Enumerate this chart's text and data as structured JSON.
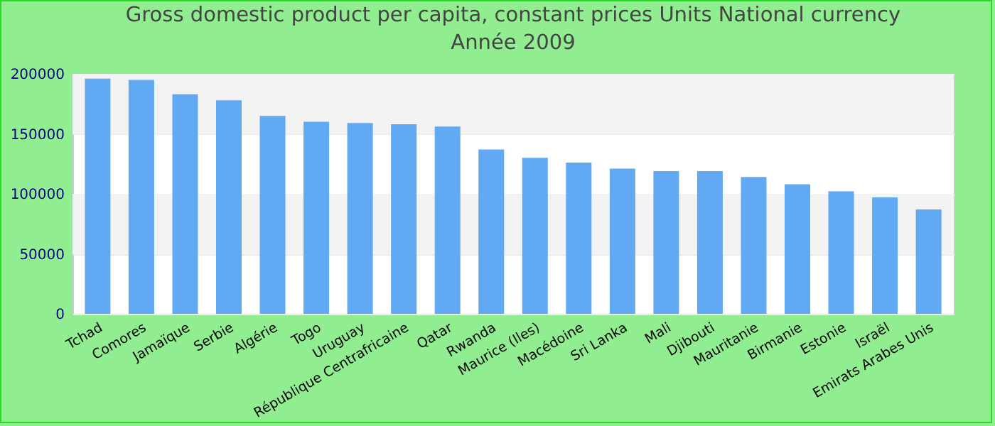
{
  "chart_data": {
    "type": "bar",
    "title": "Gross domestic product per capita, constant prices Units National currency",
    "subtitle": "Année 2009",
    "categories": [
      "Tchad",
      "Comores",
      "Jamaïque",
      "Serbie",
      "Algérie",
      "Togo",
      "Uruguay",
      "République Centrafricaine",
      "Qatar",
      "Rwanda",
      "Maurice (Iles)",
      "Macédoine",
      "Sri Lanka",
      "Mali",
      "Djibouti",
      "Mauritanie",
      "Birmanie",
      "Estonie",
      "Israël",
      "Emirats Arabes Unis"
    ],
    "values": [
      196000,
      195000,
      183000,
      178000,
      165000,
      160000,
      159000,
      158000,
      156000,
      137000,
      130000,
      126000,
      121000,
      119000,
      119000,
      114000,
      108000,
      102000,
      97000,
      87000
    ],
    "color": "#62a9f4",
    "ylim": [
      0,
      200000
    ],
    "yticks": [
      0,
      50000,
      100000,
      150000,
      200000
    ],
    "grid": true
  }
}
